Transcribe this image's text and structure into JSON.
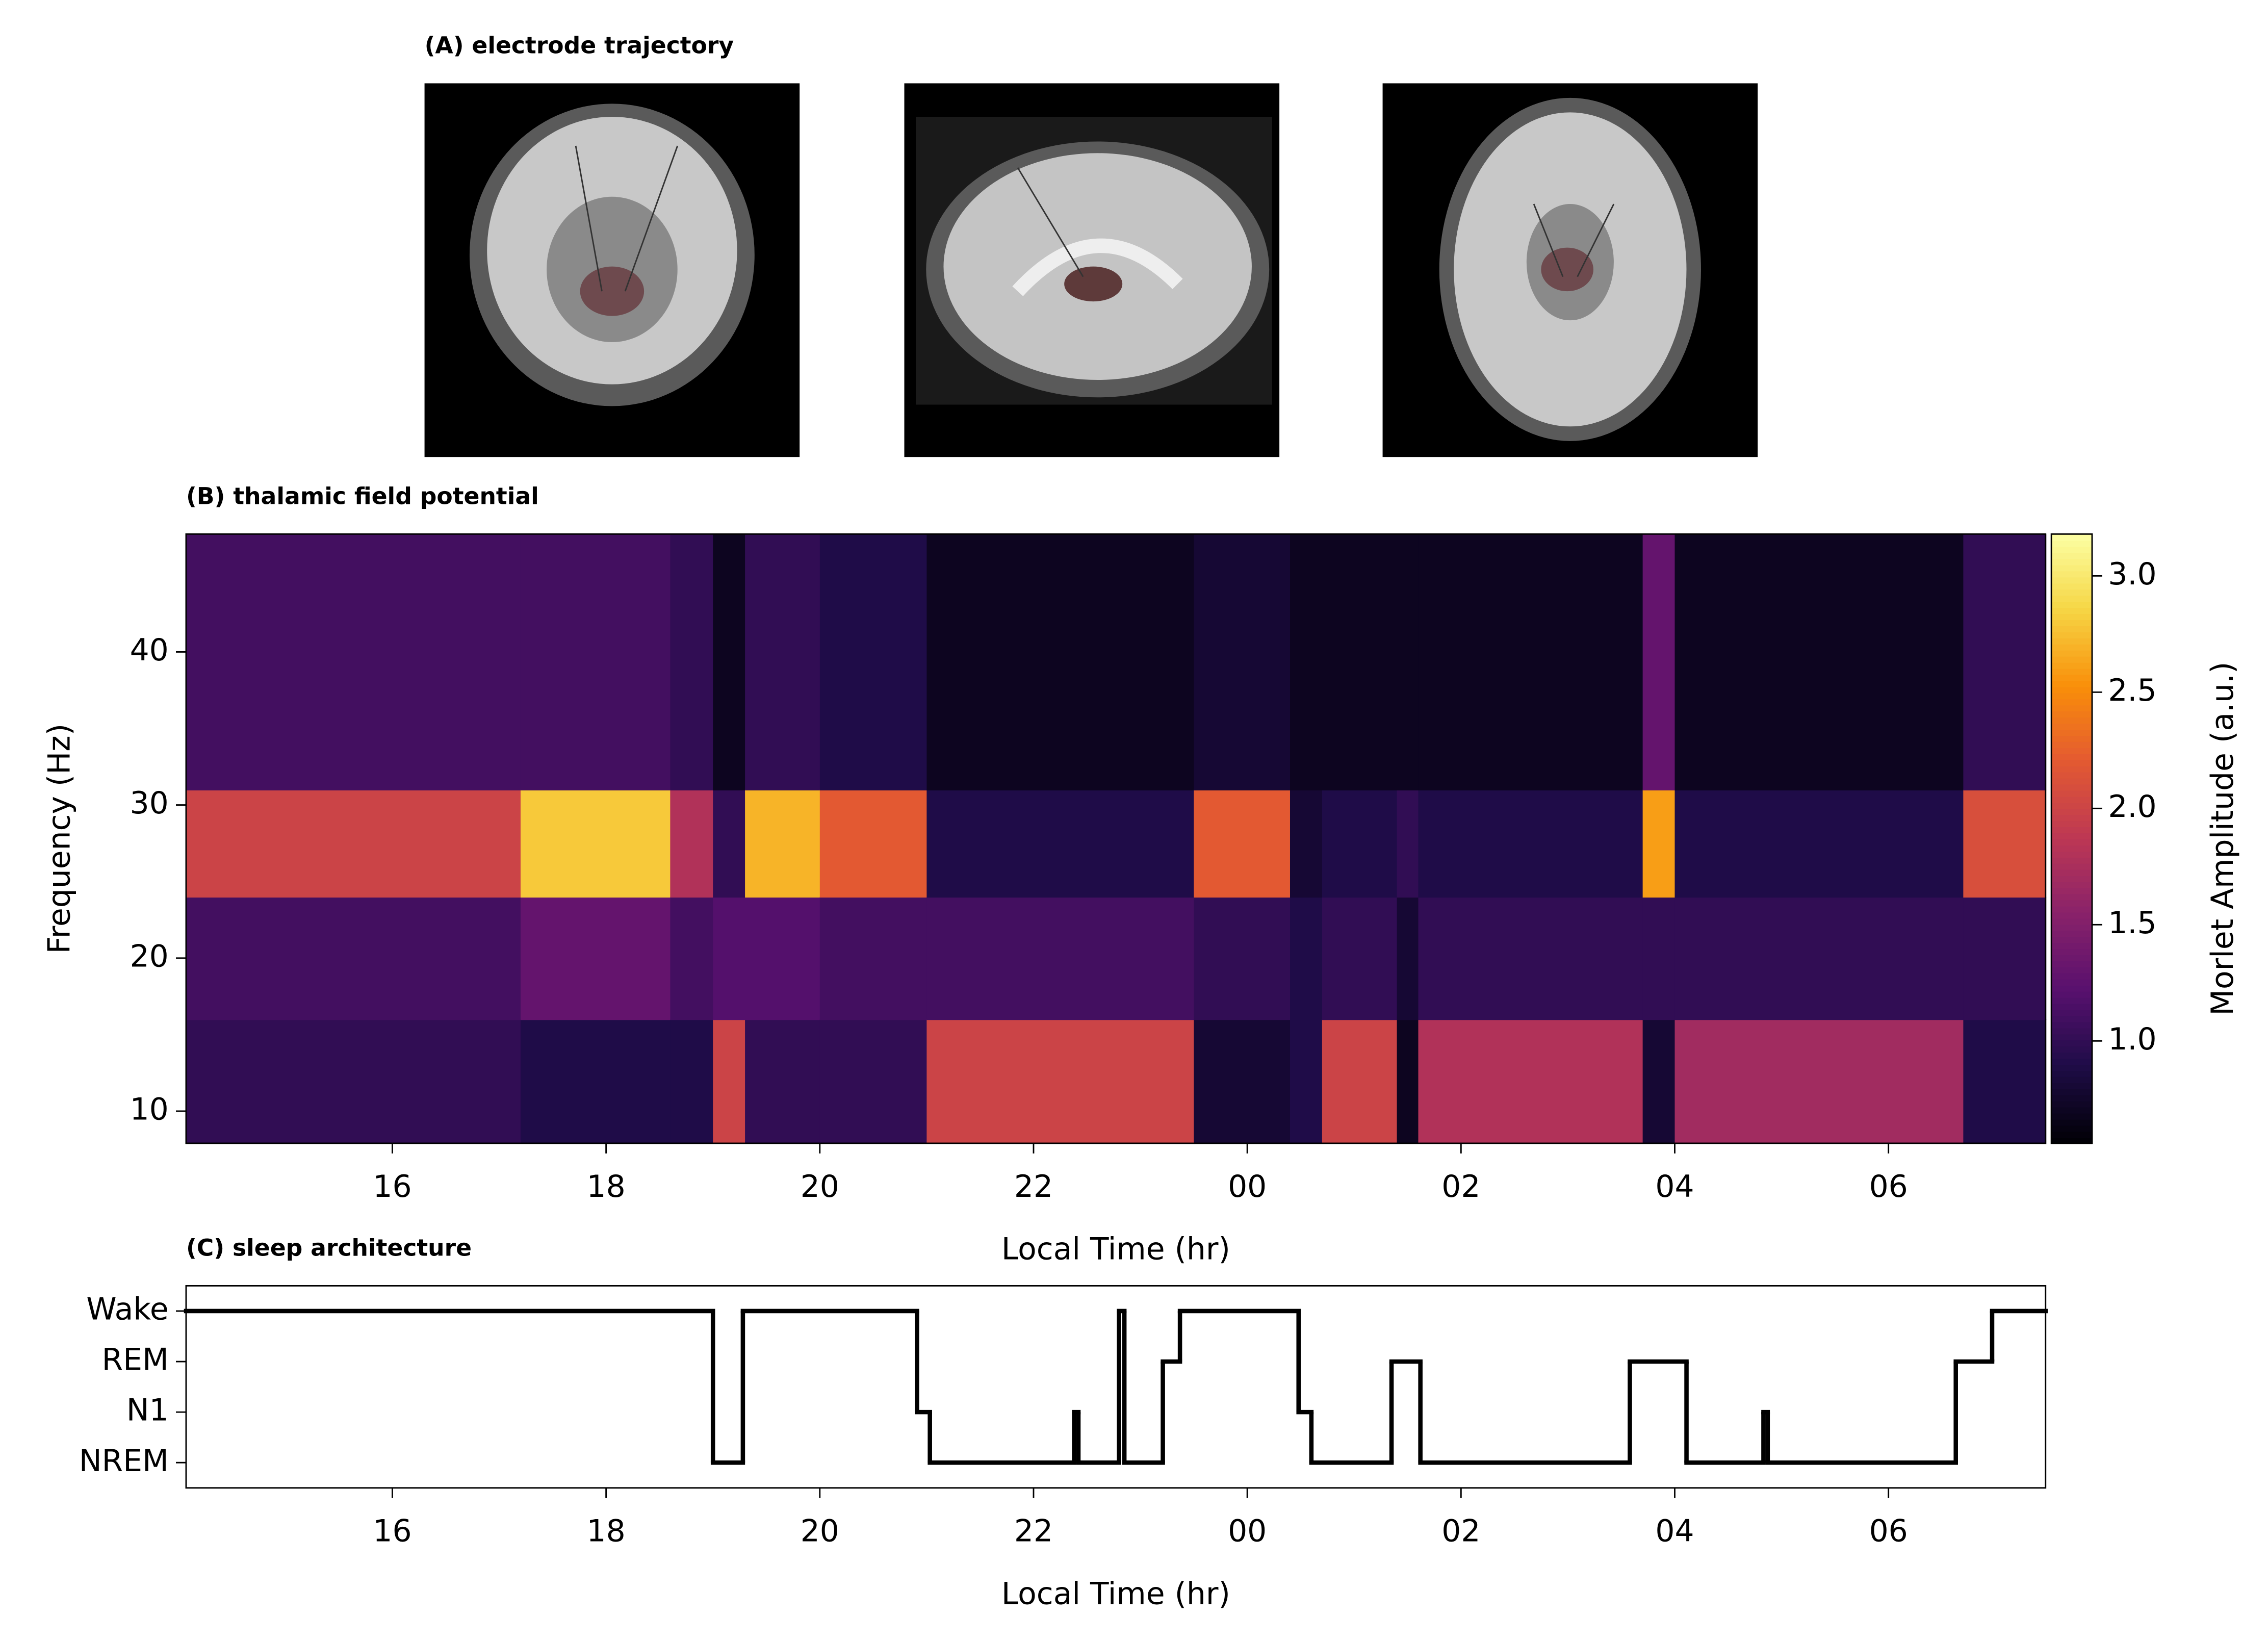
{
  "chart_data": [
    {
      "type": "images",
      "title": "(A) electrode trajectory"
    },
    {
      "type": "heatmap",
      "title": "(B) thalamic field potential",
      "x_label": "Local Time (hr)",
      "y_label": "Frequency (Hz)",
      "colorbar_label": "Morlet Amplitude (a.u.)",
      "colormap": "inferno",
      "x_edges": [
        14.07,
        17.2,
        18.6,
        19.0,
        19.3,
        20.0,
        21.0,
        23.5,
        24.4,
        24.7,
        25.4,
        25.6,
        27.7,
        28.0,
        30.7,
        31.47
      ],
      "y_edges": [
        7.9,
        16,
        24,
        31,
        47.7
      ],
      "z": [
        [
          1.0,
          1.1,
          2.0,
          1.1
        ],
        [
          0.9,
          1.3,
          2.8,
          1.1
        ],
        [
          0.9,
          1.1,
          1.8,
          1.0
        ],
        [
          2.0,
          1.2,
          1.0,
          0.7
        ],
        [
          1.0,
          1.2,
          2.7,
          1.0
        ],
        [
          1.0,
          1.1,
          2.2,
          0.9
        ],
        [
          2.0,
          1.1,
          0.9,
          0.7
        ],
        [
          0.8,
          1.0,
          2.2,
          0.8
        ],
        [
          0.9,
          0.9,
          0.8,
          0.7
        ],
        [
          2.0,
          1.0,
          0.9,
          0.7
        ],
        [
          0.7,
          0.8,
          1.0,
          0.7
        ],
        [
          1.8,
          1.0,
          0.9,
          0.7
        ],
        [
          0.8,
          1.0,
          2.6,
          1.3
        ],
        [
          1.7,
          1.0,
          0.9,
          0.7
        ],
        [
          0.9,
          1.0,
          2.1,
          1.0
        ]
      ],
      "xlim": [
        14.07,
        31.47
      ],
      "ylim": [
        7.9,
        47.7
      ],
      "clim": [
        0.56,
        3.18
      ],
      "xticks": [
        16,
        18,
        20,
        22,
        {
          "value": 24,
          "label": "00"
        },
        {
          "value": 26,
          "label": "02"
        },
        {
          "value": 28,
          "label": "04"
        },
        {
          "value": 30,
          "label": "06"
        }
      ],
      "yticks": [
        10,
        20,
        30,
        40
      ],
      "cticks": [
        {
          "value": 1.0,
          "label": "1.0"
        },
        {
          "value": 1.5,
          "label": "1.5"
        },
        {
          "value": 2.0,
          "label": "2.0"
        },
        {
          "value": 2.5,
          "label": "2.5"
        },
        {
          "value": 3.0,
          "label": "3.0"
        }
      ]
    },
    {
      "type": "step",
      "title": "(C) sleep architecture",
      "x_label": "Local Time (hr)",
      "color": "#000000",
      "stages": [
        "NREM",
        "N1",
        "REM",
        "Wake"
      ],
      "x": [
        14.07,
        19.0,
        19.28,
        20.91,
        21.03,
        22.38,
        22.42,
        22.8,
        22.85,
        23.21,
        23.37,
        24.48,
        24.6,
        25.35,
        25.62,
        27.58,
        28.11,
        28.83,
        28.87,
        30.63,
        30.97
      ],
      "values": [
        3,
        0,
        3,
        1,
        0,
        1,
        0,
        3,
        0,
        2,
        3,
        1,
        0,
        2,
        0,
        2,
        0,
        1,
        0,
        2,
        3
      ],
      "xlim": [
        14.07,
        31.47
      ],
      "ylim": [
        -0.5,
        3.5
      ],
      "xticks": [
        16,
        18,
        20,
        22,
        {
          "value": 24,
          "label": "00"
        },
        {
          "value": 26,
          "label": "02"
        },
        {
          "value": 28,
          "label": "04"
        },
        {
          "value": 30,
          "label": "06"
        }
      ]
    }
  ]
}
